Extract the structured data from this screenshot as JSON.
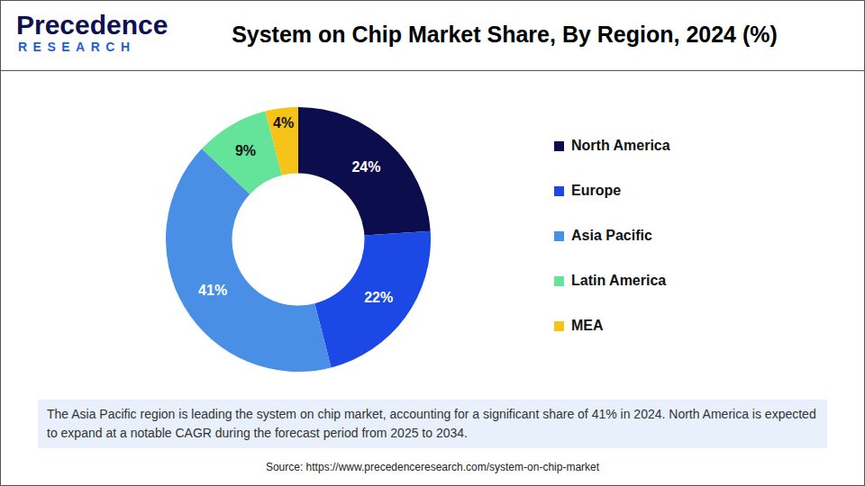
{
  "header": {
    "logo": {
      "name": "Precedence",
      "tagline": "RESEARCH"
    }
  },
  "chart_data": {
    "type": "donut",
    "title": "System on Chip Market Share, By Region, 2024 (%)",
    "categories": [
      "North America",
      "Europe",
      "Asia Pacific",
      "Latin America",
      "MEA"
    ],
    "values": [
      24,
      22,
      41,
      9,
      4
    ],
    "value_labels": [
      "24%",
      "22%",
      "41%",
      "9%",
      "4%"
    ],
    "colors": [
      "#0b0d4c",
      "#1c48e6",
      "#4a8fe6",
      "#64e39a",
      "#f6c419"
    ],
    "data_labels": true,
    "legend": "right"
  },
  "note": "The Asia Pacific region is leading the system on chip market, accounting for a significant share of 41% in 2024. North America is expected to expand at a notable CAGR during the forecast period from 2025 to 2034.",
  "source": "Source: https://www.precedenceresearch.com/system-on-chip-market"
}
